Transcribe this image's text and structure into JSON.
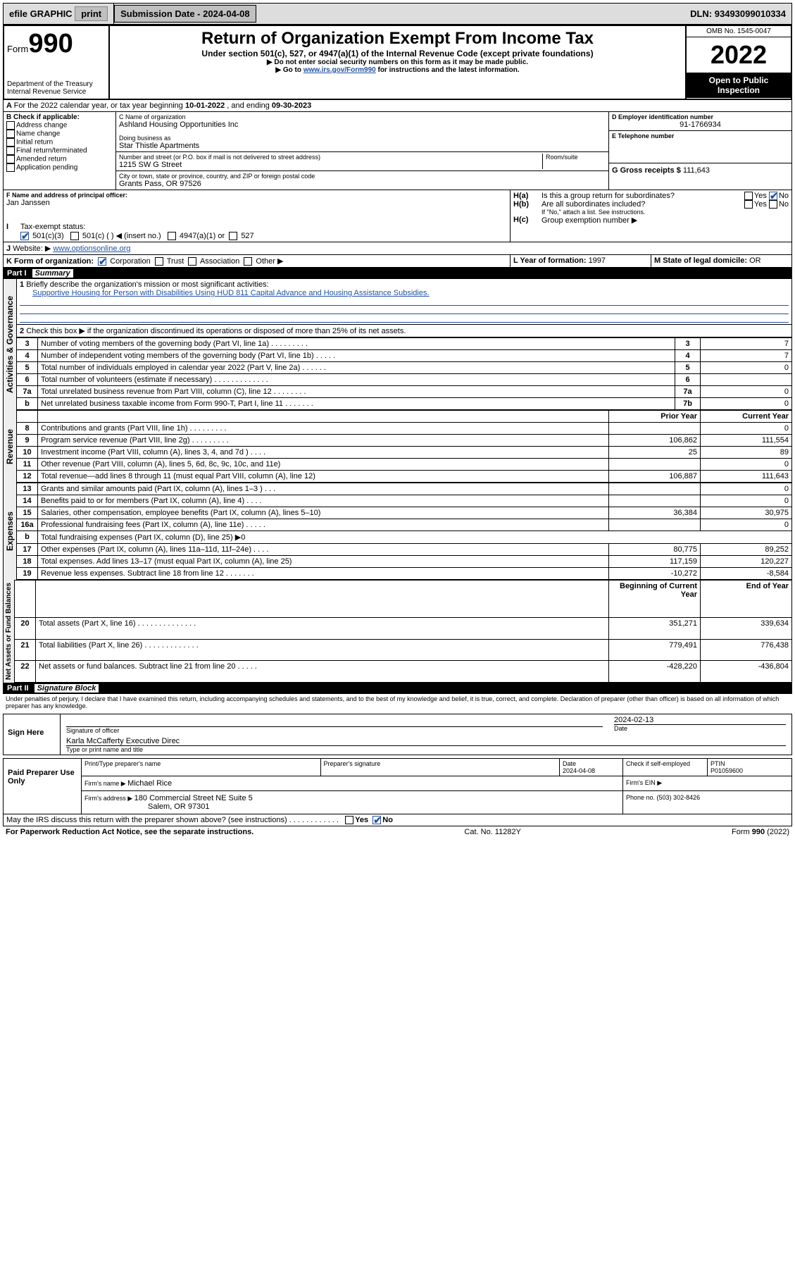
{
  "topbar": {
    "efile": "efile GRAPHIC",
    "print": "print",
    "subdate_label": "Submission Date - ",
    "subdate": "2024-04-08",
    "dln_label": "DLN: ",
    "dln": "93493099010334"
  },
  "header": {
    "form_label": "Form",
    "form_no": "990",
    "dept1": "Department of the Treasury",
    "dept2": "Internal Revenue Service",
    "title": "Return of Organization Exempt From Income Tax",
    "sub1": "Under section 501(c), 527, or 4947(a)(1) of the Internal Revenue Code (except private foundations)",
    "sub2": "▶ Do not enter social security numbers on this form as it may be made public.",
    "sub3_pre": "▶ Go to ",
    "sub3_link": "www.irs.gov/Form990",
    "sub3_post": " for instructions and the latest information.",
    "omb": "OMB No. 1545-0047",
    "year": "2022",
    "openpub": "Open to Public Inspection"
  },
  "lineA": {
    "text_pre": "For the 2022 calendar year, or tax year beginning ",
    "begin": "10-01-2022",
    "mid": " , and ending ",
    "end": "09-30-2023"
  },
  "boxB": {
    "title": "B Check if applicable:",
    "items": [
      "Address change",
      "Name change",
      "Initial return",
      "Final return/terminated",
      "Amended return",
      "Application pending"
    ]
  },
  "boxC": {
    "name_label": "C Name of organization",
    "name": "Ashland Housing Opportunities Inc",
    "dba_label": "Doing business as",
    "dba": "Star Thistle Apartments",
    "street_label": "Number and street (or P.O. box if mail is not delivered to street address)",
    "room_label": "Room/suite",
    "street": "1215 SW G Street",
    "city_label": "City or town, state or province, country, and ZIP or foreign postal code",
    "city": "Grants Pass, OR  97526"
  },
  "boxD": {
    "label": "D Employer identification number",
    "val": "91-1766934"
  },
  "boxE": {
    "label": "E Telephone number",
    "val": ""
  },
  "boxG": {
    "label": "G Gross receipts $ ",
    "val": "111,643"
  },
  "boxF": {
    "label": "F Name and address of principal officer:",
    "val": "Jan Janssen"
  },
  "boxH": {
    "ha": "Is this a group return for subordinates?",
    "hb": "Are all subordinates included?",
    "hb_note": "If \"No,\" attach a list. See instructions.",
    "hc": "Group exemption number ▶",
    "yes": "Yes",
    "no": "No"
  },
  "lineI": {
    "label": "Tax-exempt status:",
    "o1": "501(c)(3)",
    "o2": "501(c) (  ) ◀ (insert no.)",
    "o3": "4947(a)(1) or",
    "o4": "527"
  },
  "lineJ": {
    "label": "Website: ▶",
    "val": "www.optionsonline.org"
  },
  "lineK": {
    "label": "K Form of organization:",
    "o1": "Corporation",
    "o2": "Trust",
    "o3": "Association",
    "o4": "Other ▶"
  },
  "lineL": {
    "label": "L Year of formation: ",
    "val": "1997"
  },
  "lineM": {
    "label": "M State of legal domicile: ",
    "val": "OR"
  },
  "parts": {
    "p1": "Part I",
    "p1t": "Summary",
    "p2": "Part II",
    "p2t": "Signature Block"
  },
  "summary": {
    "q1_label": "Briefly describe the organization's mission or most significant activities:",
    "q1_val": "Supportive Housing for Person with Disabilities Using HUD 811 Capital Advance and Housing Assistance Subsidies.",
    "q2": "Check this box ▶        if the organization discontinued its operations or disposed of more than 25% of its net assets.",
    "rows_gov": [
      {
        "n": "3",
        "desc": "Number of voting members of the governing body (Part VI, line 1a)   .   .   .   .   .   .   .   .   .",
        "k": "3",
        "v": "7"
      },
      {
        "n": "4",
        "desc": "Number of independent voting members of the governing body (Part VI, line 1b)   .   .   .   .   .",
        "k": "4",
        "v": "7"
      },
      {
        "n": "5",
        "desc": "Total number of individuals employed in calendar year 2022 (Part V, line 2a)   .   .   .   .   .   .",
        "k": "5",
        "v": "0"
      },
      {
        "n": "6",
        "desc": "Total number of volunteers (estimate if necessary)   .   .   .   .   .   .   .   .   .   .   .   .   .",
        "k": "6",
        "v": ""
      },
      {
        "n": "7a",
        "desc": "Total unrelated business revenue from Part VIII, column (C), line 12   .   .   .   .   .   .   .   .",
        "k": "7a",
        "v": "0"
      },
      {
        "n": "b",
        "desc": "Net unrelated business taxable income from Form 990-T, Part I, line 11   .   .   .   .   .   .   .",
        "k": "7b",
        "v": "0"
      }
    ],
    "col_prior": "Prior Year",
    "col_curr": "Current Year",
    "rows_rev": [
      {
        "n": "8",
        "desc": "Contributions and grants (Part VIII, line 1h)   .   .   .   .   .   .   .   .   .",
        "p": "",
        "c": "0"
      },
      {
        "n": "9",
        "desc": "Program service revenue (Part VIII, line 2g)   .   .   .   .   .   .   .   .   .",
        "p": "106,862",
        "c": "111,554"
      },
      {
        "n": "10",
        "desc": "Investment income (Part VIII, column (A), lines 3, 4, and 7d )   .   .   .   .",
        "p": "25",
        "c": "89"
      },
      {
        "n": "11",
        "desc": "Other revenue (Part VIII, column (A), lines 5, 6d, 8c, 9c, 10c, and 11e)",
        "p": "",
        "c": "0"
      },
      {
        "n": "12",
        "desc": "Total revenue—add lines 8 through 11 (must equal Part VIII, column (A), line 12)",
        "p": "106,887",
        "c": "111,643"
      }
    ],
    "rows_exp": [
      {
        "n": "13",
        "desc": "Grants and similar amounts paid (Part IX, column (A), lines 1–3 )   .   .   .",
        "p": "",
        "c": "0"
      },
      {
        "n": "14",
        "desc": "Benefits paid to or for members (Part IX, column (A), line 4)   .   .   .   .",
        "p": "",
        "c": "0"
      },
      {
        "n": "15",
        "desc": "Salaries, other compensation, employee benefits (Part IX, column (A), lines 5–10)",
        "p": "36,384",
        "c": "30,975"
      },
      {
        "n": "16a",
        "desc": "Professional fundraising fees (Part IX, column (A), line 11e)   .   .   .   .   .",
        "p": "",
        "c": "0"
      },
      {
        "n": "b",
        "desc": "Total fundraising expenses (Part IX, column (D), line 25) ▶0",
        "p": null,
        "c": null
      },
      {
        "n": "17",
        "desc": "Other expenses (Part IX, column (A), lines 11a–11d, 11f–24e)   .   .   .   .",
        "p": "80,775",
        "c": "89,252"
      },
      {
        "n": "18",
        "desc": "Total expenses. Add lines 13–17 (must equal Part IX, column (A), line 25)",
        "p": "117,159",
        "c": "120,227"
      },
      {
        "n": "19",
        "desc": "Revenue less expenses. Subtract line 18 from line 12   .   .   .   .   .   .   .",
        "p": "-10,272",
        "c": "-8,584"
      }
    ],
    "col_beg": "Beginning of Current Year",
    "col_end": "End of Year",
    "rows_net": [
      {
        "n": "20",
        "desc": "Total assets (Part X, line 16)   .   .   .   .   .   .   .   .   .   .   .   .   .   .",
        "p": "351,271",
        "c": "339,634"
      },
      {
        "n": "21",
        "desc": "Total liabilities (Part X, line 26)   .   .   .   .   .   .   .   .   .   .   .   .   .",
        "p": "779,491",
        "c": "776,438"
      },
      {
        "n": "22",
        "desc": "Net assets or fund balances. Subtract line 21 from line 20   .   .   .   .   .",
        "p": "-428,220",
        "c": "-436,804"
      }
    ],
    "side_gov": "Activities & Governance",
    "side_rev": "Revenue",
    "side_exp": "Expenses",
    "side_net": "Net Assets or Fund Balances"
  },
  "sig": {
    "decl": "Under penalties of perjury, I declare that I have examined this return, including accompanying schedules and statements, and to the best of my knowledge and belief, it is true, correct, and complete. Declaration of preparer (other than officer) is based on all information of which preparer has any knowledge.",
    "sign_here": "Sign Here",
    "sig_officer": "Signature of officer",
    "date_label": "Date",
    "sig_date": "2024-02-13",
    "name_title": "Karla McCafferty  Executive Direc",
    "name_title_label": "Type or print name and title",
    "paid": "Paid Preparer Use Only",
    "prep_name_label": "Print/Type preparer's name",
    "prep_sig_label": "Preparer's signature",
    "prep_date": "2024-04-08",
    "self_emp": "Check        if self-employed",
    "ptin_label": "PTIN",
    "ptin": "P01059600",
    "firm_name_label": "Firm's name    ▶ ",
    "firm_name": "Michael Rice",
    "firm_ein_label": "Firm's EIN ▶",
    "firm_addr_label": "Firm's address ▶ ",
    "firm_addr1": "180 Commercial Street NE Suite 5",
    "firm_addr2": "Salem, OR  97301",
    "phone_label": "Phone no. ",
    "phone": "(503) 302-8426",
    "may_irs": "May the IRS discuss this return with the preparer shown above? (see instructions)   .   .   .   .   .   .   .   .   .   .   .   ."
  },
  "footer": {
    "left": "For Paperwork Reduction Act Notice, see the separate instructions.",
    "mid": "Cat. No. 11282Y",
    "right": "Form 990 (2022)"
  }
}
